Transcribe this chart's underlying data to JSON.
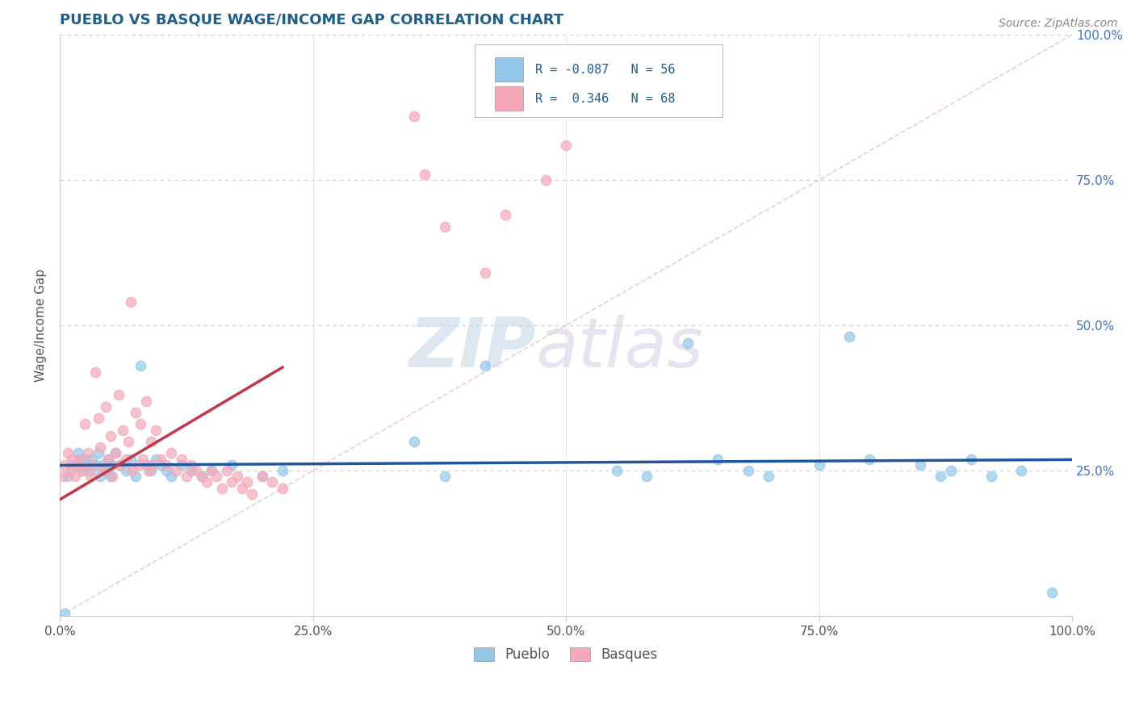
{
  "title": "PUEBLO VS BASQUE WAGE/INCOME GAP CORRELATION CHART",
  "source_text": "Source: ZipAtlas.com",
  "ylabel": "Wage/Income Gap",
  "xlim": [
    0.0,
    1.0
  ],
  "ylim": [
    0.0,
    1.0
  ],
  "pueblo_color": "#93c6e8",
  "basque_color": "#f4a8b8",
  "pueblo_R": -0.087,
  "pueblo_N": 56,
  "basque_R": 0.346,
  "basque_N": 68,
  "title_color": "#1f5f8b",
  "legend_R_color": "#1f5f8b",
  "watermark_ZIP": "ZIP",
  "watermark_atlas": "atlas",
  "pueblo_scatter_x": [
    0.005,
    0.008,
    0.012,
    0.018,
    0.02,
    0.022,
    0.025,
    0.028,
    0.03,
    0.032,
    0.035,
    0.038,
    0.04,
    0.042,
    0.045,
    0.048,
    0.05,
    0.052,
    0.055,
    0.06,
    0.065,
    0.07,
    0.075,
    0.08,
    0.085,
    0.09,
    0.095,
    0.1,
    0.105,
    0.11,
    0.12,
    0.13,
    0.14,
    0.15,
    0.17,
    0.2,
    0.22,
    0.35,
    0.38,
    0.42,
    0.55,
    0.58,
    0.62,
    0.65,
    0.68,
    0.7,
    0.75,
    0.78,
    0.8,
    0.85,
    0.87,
    0.88,
    0.9,
    0.92,
    0.95,
    0.98
  ],
  "pueblo_scatter_y": [
    0.005,
    0.24,
    0.26,
    0.28,
    0.27,
    0.25,
    0.27,
    0.26,
    0.25,
    0.27,
    0.26,
    0.28,
    0.24,
    0.26,
    0.25,
    0.27,
    0.24,
    0.26,
    0.28,
    0.26,
    0.25,
    0.27,
    0.24,
    0.43,
    0.26,
    0.25,
    0.27,
    0.26,
    0.25,
    0.24,
    0.26,
    0.25,
    0.24,
    0.25,
    0.26,
    0.24,
    0.25,
    0.3,
    0.24,
    0.43,
    0.25,
    0.24,
    0.47,
    0.27,
    0.25,
    0.24,
    0.26,
    0.48,
    0.27,
    0.26,
    0.24,
    0.25,
    0.27,
    0.24,
    0.25,
    0.04
  ],
  "basque_scatter_x": [
    0.003,
    0.005,
    0.008,
    0.01,
    0.012,
    0.015,
    0.018,
    0.02,
    0.022,
    0.025,
    0.028,
    0.03,
    0.032,
    0.035,
    0.038,
    0.04,
    0.042,
    0.045,
    0.048,
    0.05,
    0.052,
    0.055,
    0.058,
    0.06,
    0.062,
    0.065,
    0.068,
    0.07,
    0.072,
    0.075,
    0.078,
    0.08,
    0.082,
    0.085,
    0.088,
    0.09,
    0.092,
    0.095,
    0.1,
    0.105,
    0.11,
    0.115,
    0.12,
    0.125,
    0.13,
    0.135,
    0.14,
    0.145,
    0.15,
    0.155,
    0.16,
    0.165,
    0.17,
    0.175,
    0.18,
    0.185,
    0.19,
    0.2,
    0.21,
    0.22,
    0.35,
    0.36,
    0.38,
    0.42,
    0.44,
    0.48,
    0.5,
    0.51
  ],
  "basque_scatter_y": [
    0.24,
    0.26,
    0.28,
    0.25,
    0.27,
    0.24,
    0.26,
    0.27,
    0.25,
    0.33,
    0.28,
    0.24,
    0.26,
    0.42,
    0.34,
    0.29,
    0.25,
    0.36,
    0.27,
    0.31,
    0.24,
    0.28,
    0.38,
    0.26,
    0.32,
    0.27,
    0.3,
    0.54,
    0.25,
    0.35,
    0.26,
    0.33,
    0.27,
    0.37,
    0.25,
    0.3,
    0.26,
    0.32,
    0.27,
    0.26,
    0.28,
    0.25,
    0.27,
    0.24,
    0.26,
    0.25,
    0.24,
    0.23,
    0.25,
    0.24,
    0.22,
    0.25,
    0.23,
    0.24,
    0.22,
    0.23,
    0.21,
    0.24,
    0.23,
    0.22,
    0.86,
    0.76,
    0.67,
    0.59,
    0.69,
    0.75,
    0.81,
    0.91
  ]
}
